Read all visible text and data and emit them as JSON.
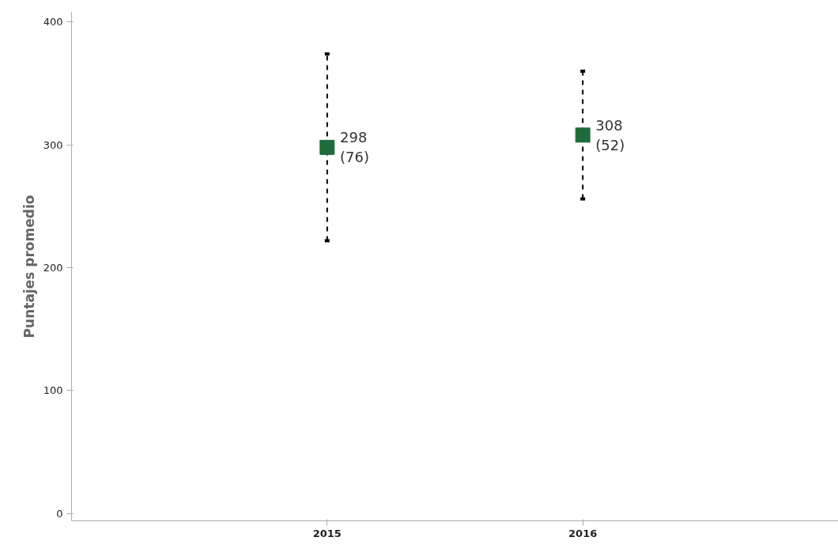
{
  "chart_data": {
    "type": "scatter",
    "ylabel": "Puntajes promedio",
    "categories": [
      "2015",
      "2016"
    ],
    "values": [
      298,
      308
    ],
    "errors": [
      76,
      52
    ],
    "value_labels": [
      "298\n(76)",
      "308\n(52)"
    ],
    "color": "#1e6b3c",
    "marker": "square",
    "line_style": "dashed",
    "ylim": [
      -6,
      408
    ],
    "yticks": [
      0,
      100,
      200,
      300,
      400
    ],
    "grid": false
  }
}
